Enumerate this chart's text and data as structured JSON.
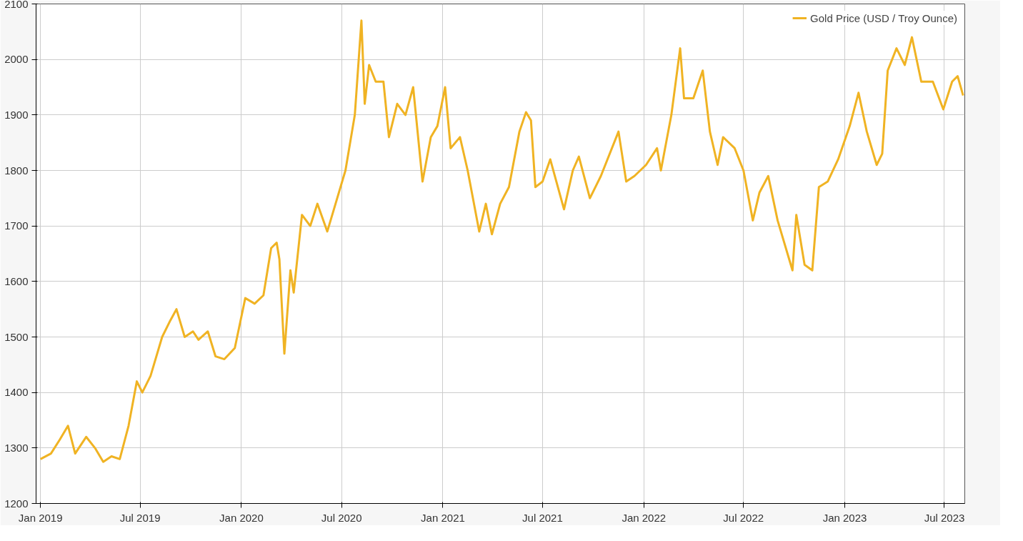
{
  "chart_data": {
    "type": "line",
    "legend": "top right",
    "grid": true,
    "marker": "none",
    "line_style": "solid",
    "xlim": [
      "2018-12-24",
      "2023-08-07"
    ],
    "xticks": [
      {
        "value": "2019-01-01",
        "label": "Jan 2019"
      },
      {
        "value": "2019-07-01",
        "label": "Jul 2019"
      },
      {
        "value": "2020-01-01",
        "label": "Jan 2020"
      },
      {
        "value": "2020-07-01",
        "label": "Jul 2020"
      },
      {
        "value": "2021-01-01",
        "label": "Jan 2021"
      },
      {
        "value": "2021-07-01",
        "label": "Jul 2021"
      },
      {
        "value": "2022-01-01",
        "label": "Jan 2022"
      },
      {
        "value": "2022-07-01",
        "label": "Jul 2022"
      },
      {
        "value": "2023-01-01",
        "label": "Jan 2023"
      },
      {
        "value": "2023-07-01",
        "label": "Jul 2023"
      }
    ],
    "ylim": [
      1200,
      2100
    ],
    "yticks": [
      1200,
      1300,
      1400,
      1500,
      1600,
      1700,
      1800,
      1900,
      2000,
      2100
    ],
    "series": [
      {
        "name": "Gold Price (USD / Troy Ounce)",
        "color": "#f0b323",
        "x": [
          "2019-01-01",
          "2019-01-20",
          "2019-02-05",
          "2019-02-20",
          "2019-03-05",
          "2019-03-25",
          "2019-04-10",
          "2019-04-25",
          "2019-05-10",
          "2019-05-25",
          "2019-06-10",
          "2019-06-25",
          "2019-07-05",
          "2019-07-20",
          "2019-08-10",
          "2019-08-25",
          "2019-09-05",
          "2019-09-20",
          "2019-10-05",
          "2019-10-15",
          "2019-11-01",
          "2019-11-15",
          "2019-12-01",
          "2019-12-20",
          "2020-01-08",
          "2020-01-25",
          "2020-02-10",
          "2020-02-24",
          "2020-03-05",
          "2020-03-10",
          "2020-03-19",
          "2020-03-30",
          "2020-04-05",
          "2020-04-20",
          "2020-05-05",
          "2020-05-18",
          "2020-06-05",
          "2020-06-20",
          "2020-07-08",
          "2020-07-25",
          "2020-08-06",
          "2020-08-12",
          "2020-08-20",
          "2020-09-01",
          "2020-09-15",
          "2020-09-25",
          "2020-10-10",
          "2020-10-25",
          "2020-11-08",
          "2020-11-25",
          "2020-12-10",
          "2020-12-22",
          "2021-01-05",
          "2021-01-15",
          "2021-02-01",
          "2021-02-15",
          "2021-03-08",
          "2021-03-20",
          "2021-03-31",
          "2021-04-15",
          "2021-05-01",
          "2021-05-20",
          "2021-06-01",
          "2021-06-10",
          "2021-06-18",
          "2021-07-01",
          "2021-07-15",
          "2021-08-09",
          "2021-08-25",
          "2021-09-05",
          "2021-09-25",
          "2021-10-15",
          "2021-11-16",
          "2021-11-30",
          "2021-12-15",
          "2022-01-05",
          "2022-01-25",
          "2022-02-01",
          "2022-02-20",
          "2022-03-08",
          "2022-03-15",
          "2022-04-01",
          "2022-04-18",
          "2022-05-01",
          "2022-05-15",
          "2022-05-25",
          "2022-06-15",
          "2022-07-01",
          "2022-07-18",
          "2022-07-30",
          "2022-08-15",
          "2022-09-01",
          "2022-09-28",
          "2022-10-05",
          "2022-10-20",
          "2022-11-03",
          "2022-11-15",
          "2022-12-01",
          "2022-12-20",
          "2023-01-10",
          "2023-01-26",
          "2023-02-10",
          "2023-02-28",
          "2023-03-10",
          "2023-03-20",
          "2023-04-05",
          "2023-04-20",
          "2023-05-03",
          "2023-05-20",
          "2023-06-10",
          "2023-06-29",
          "2023-07-15",
          "2023-07-25",
          "2023-08-04"
        ],
        "values": [
          1280,
          1290,
          1315,
          1340,
          1290,
          1320,
          1300,
          1275,
          1285,
          1280,
          1340,
          1420,
          1400,
          1430,
          1500,
          1530,
          1550,
          1500,
          1510,
          1495,
          1510,
          1465,
          1460,
          1480,
          1570,
          1560,
          1575,
          1660,
          1670,
          1640,
          1470,
          1620,
          1580,
          1720,
          1700,
          1740,
          1690,
          1740,
          1800,
          1900,
          2070,
          1920,
          1990,
          1960,
          1960,
          1860,
          1920,
          1900,
          1950,
          1780,
          1860,
          1880,
          1950,
          1840,
          1860,
          1800,
          1690,
          1740,
          1685,
          1740,
          1770,
          1870,
          1905,
          1890,
          1770,
          1780,
          1820,
          1730,
          1800,
          1825,
          1750,
          1790,
          1870,
          1780,
          1790,
          1810,
          1840,
          1800,
          1900,
          2020,
          1930,
          1930,
          1980,
          1870,
          1810,
          1860,
          1840,
          1800,
          1710,
          1760,
          1790,
          1710,
          1620,
          1720,
          1630,
          1620,
          1770,
          1780,
          1820,
          1880,
          1940,
          1870,
          1810,
          1830,
          1980,
          2020,
          1990,
          2040,
          1960,
          1960,
          1910,
          1960,
          1970,
          1935
        ]
      }
    ]
  }
}
